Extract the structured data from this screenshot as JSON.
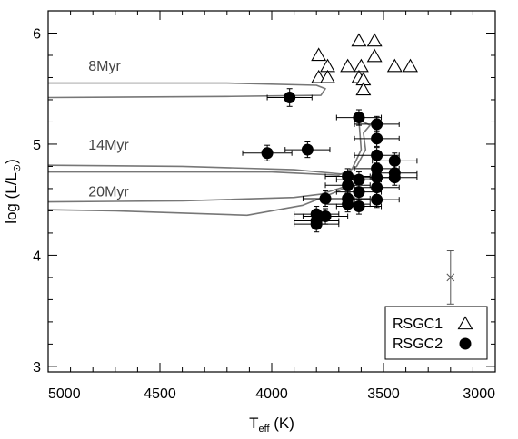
{
  "chart_data": {
    "type": "scatter",
    "x_axis": {
      "label_main": "T",
      "label_sub": "eff",
      "label_unit": " (K)",
      "range": [
        5000,
        3000
      ],
      "ticks": [
        5000,
        4500,
        4000,
        3500,
        3000
      ],
      "tick_labels": [
        "5000",
        "4500",
        "4000",
        "3500",
        "3000"
      ]
    },
    "y_axis": {
      "label_main": "log (L/L",
      "label_sub": "⊙",
      "label_close": ")",
      "range": [
        2.95,
        6.2
      ],
      "ticks": [
        3,
        4,
        5,
        6
      ],
      "tick_labels": [
        "3",
        "4",
        "5",
        "6"
      ]
    },
    "legend": {
      "placement": "bottom-right",
      "entries": [
        {
          "label": "RSGC1",
          "marker": "open-triangle"
        },
        {
          "label": "RSGC2",
          "marker": "filled-circle"
        }
      ]
    },
    "series": [
      {
        "name": "RSGC1",
        "marker": "open-triangle",
        "points": [
          {
            "x": 3610,
            "y": 5.93
          },
          {
            "x": 3540,
            "y": 5.93
          },
          {
            "x": 3790,
            "y": 5.8
          },
          {
            "x": 3540,
            "y": 5.79
          },
          {
            "x": 3750,
            "y": 5.7
          },
          {
            "x": 3660,
            "y": 5.7
          },
          {
            "x": 3600,
            "y": 5.7
          },
          {
            "x": 3450,
            "y": 5.7
          },
          {
            "x": 3380,
            "y": 5.7
          },
          {
            "x": 3790,
            "y": 5.6
          },
          {
            "x": 3750,
            "y": 5.6
          },
          {
            "x": 3610,
            "y": 5.6
          },
          {
            "x": 3590,
            "y": 5.58
          },
          {
            "x": 3590,
            "y": 5.49
          }
        ]
      },
      {
        "name": "RSGC2",
        "marker": "filled-circle",
        "points": [
          {
            "x": 3920,
            "y": 5.42,
            "xerr": 100,
            "yerr": 0.08
          },
          {
            "x": 3610,
            "y": 5.24,
            "xerr": 100,
            "yerr": 0.07
          },
          {
            "x": 3530,
            "y": 5.18,
            "xerr": 100,
            "yerr": 0.07
          },
          {
            "x": 3530,
            "y": 5.05,
            "xerr": 100,
            "yerr": 0.07
          },
          {
            "x": 3840,
            "y": 4.95,
            "xerr": 100,
            "yerr": 0.07
          },
          {
            "x": 4020,
            "y": 4.92,
            "xerr": 110,
            "yerr": 0.07
          },
          {
            "x": 3530,
            "y": 4.9,
            "xerr": 100,
            "yerr": 0.07
          },
          {
            "x": 3450,
            "y": 4.85,
            "xerr": 100,
            "yerr": 0.07
          },
          {
            "x": 3530,
            "y": 4.78,
            "xerr": 100,
            "yerr": 0.07
          },
          {
            "x": 3450,
            "y": 4.74,
            "xerr": 100,
            "yerr": 0.07
          },
          {
            "x": 3660,
            "y": 4.71,
            "xerr": 100,
            "yerr": 0.07
          },
          {
            "x": 3530,
            "y": 4.7,
            "xerr": 100,
            "yerr": 0.07
          },
          {
            "x": 3450,
            "y": 4.7,
            "xerr": 100,
            "yerr": 0.07
          },
          {
            "x": 3610,
            "y": 4.68,
            "xerr": 100,
            "yerr": 0.07
          },
          {
            "x": 3660,
            "y": 4.63,
            "xerr": 100,
            "yerr": 0.07
          },
          {
            "x": 3530,
            "y": 4.61,
            "xerr": 100,
            "yerr": 0.07
          },
          {
            "x": 3610,
            "y": 4.57,
            "xerr": 100,
            "yerr": 0.07
          },
          {
            "x": 3760,
            "y": 4.51,
            "xerr": 100,
            "yerr": 0.07
          },
          {
            "x": 3660,
            "y": 4.51,
            "xerr": 100,
            "yerr": 0.07
          },
          {
            "x": 3530,
            "y": 4.5,
            "xerr": 100,
            "yerr": 0.07
          },
          {
            "x": 3660,
            "y": 4.46,
            "xerr": 100,
            "yerr": 0.07
          },
          {
            "x": 3610,
            "y": 4.44,
            "xerr": 100,
            "yerr": 0.07
          },
          {
            "x": 3800,
            "y": 4.37,
            "xerr": 100,
            "yerr": 0.07
          },
          {
            "x": 3760,
            "y": 4.35,
            "xerr": 100,
            "yerr": 0.07
          },
          {
            "x": 3800,
            "y": 4.31,
            "xerr": 100,
            "yerr": 0.07
          },
          {
            "x": 3800,
            "y": 4.28,
            "xerr": 100,
            "yerr": 0.07
          }
        ]
      }
    ],
    "representative_error": {
      "x": 3200,
      "y": 3.8,
      "yerr": 0.24
    },
    "tracks": [
      {
        "label": "8Myr",
        "label_pos": {
          "x": 4820,
          "y": 5.66
        },
        "path": [
          [
            5000,
            5.55
          ],
          [
            4200,
            5.55
          ],
          [
            3800,
            5.53
          ],
          [
            3760,
            5.5
          ],
          [
            3780,
            5.44
          ],
          [
            4200,
            5.43
          ],
          [
            5000,
            5.42
          ]
        ]
      },
      {
        "label": "14Myr",
        "label_pos": {
          "x": 4820,
          "y": 4.95
        },
        "path": [
          [
            5000,
            4.81
          ],
          [
            4400,
            4.8
          ],
          [
            3900,
            4.77
          ],
          [
            3680,
            4.73
          ],
          [
            3620,
            4.8
          ],
          [
            3580,
            4.95
          ],
          [
            3590,
            5.1
          ],
          [
            3560,
            5.17
          ],
          [
            3610,
            5.22
          ],
          [
            3600,
            4.95
          ],
          [
            3640,
            4.78
          ],
          [
            3700,
            4.72
          ],
          [
            4000,
            4.75
          ],
          [
            5000,
            4.75
          ]
        ]
      },
      {
        "label": "20Myr",
        "label_pos": {
          "x": 4820,
          "y": 4.53
        },
        "path": [
          [
            5000,
            4.41
          ],
          [
            4700,
            4.4
          ],
          [
            4110,
            4.36
          ],
          [
            3860,
            4.45
          ],
          [
            3700,
            4.58
          ],
          [
            3640,
            4.64
          ],
          [
            3700,
            4.6
          ],
          [
            3780,
            4.55
          ],
          [
            3900,
            4.52
          ],
          [
            4400,
            4.49
          ],
          [
            5000,
            4.48
          ]
        ]
      }
    ]
  }
}
